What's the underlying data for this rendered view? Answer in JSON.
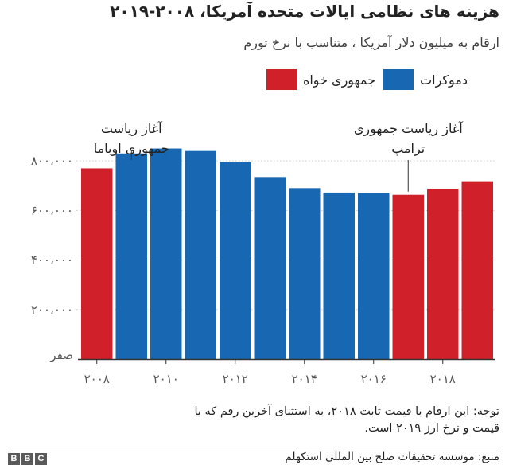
{
  "title": "هزینه های نظامی ایالات متحده آمریکا، ۲۰۰۸-۲۰۱۹",
  "subtitle": "ارقام به میلیون دلار آمریکا ، متناسب با نرخ تورم",
  "legend": [
    {
      "name": "جمهوری خواه",
      "color": "#d0202a"
    },
    {
      "name": "دموکرات",
      "color": "#1767b3"
    }
  ],
  "chart_data": {
    "type": "bar",
    "x": [
      2008,
      2009,
      2010,
      2011,
      2012,
      2013,
      2014,
      2015,
      2016,
      2017,
      2018,
      2019
    ],
    "values": [
      770000,
      830000,
      850000,
      840000,
      795000,
      735000,
      690000,
      672000,
      670000,
      663000,
      688000,
      718000
    ],
    "party": [
      "republican",
      "democrat",
      "democrat",
      "democrat",
      "democrat",
      "democrat",
      "democrat",
      "democrat",
      "democrat",
      "republican",
      "republican",
      "republican"
    ],
    "colors": {
      "republican": "#d0202a",
      "democrat": "#1767b3"
    },
    "ylim": [
      0,
      900000
    ],
    "yticks": [
      0,
      200000,
      400000,
      600000,
      800000
    ],
    "ytick_labels": [
      "صفر",
      "۲۰۰،۰۰۰",
      "۴۰۰،۰۰۰",
      "۶۰۰،۰۰۰",
      "۸۰۰،۰۰۰"
    ],
    "xticks": [
      2008,
      2010,
      2012,
      2014,
      2016,
      2018
    ],
    "xtick_labels": [
      "۲۰۰۸",
      "۲۰۱۰",
      "۲۰۱۲",
      "۲۰۱۴",
      "۲۰۱۶",
      "۲۰۱۸"
    ],
    "grid": true,
    "annotations": [
      {
        "x": 2009,
        "lines": [
          "آغاز ریاست",
          "جمهوری اوباما"
        ]
      },
      {
        "x": 2017,
        "lines": [
          "آغاز ریاست جمهوری",
          "ترامپ"
        ]
      }
    ]
  },
  "note": "توجه: این ارقام با قیمت ثابت ۲۰۱۸، به استثنای آخرین رقم که با قیمت و نرخ ارز ۲۰۱۹ است.",
  "source": "منبع: موسسه تحقیقات صلح بین المللی استکهلم",
  "logo": [
    "B",
    "B",
    "C"
  ]
}
